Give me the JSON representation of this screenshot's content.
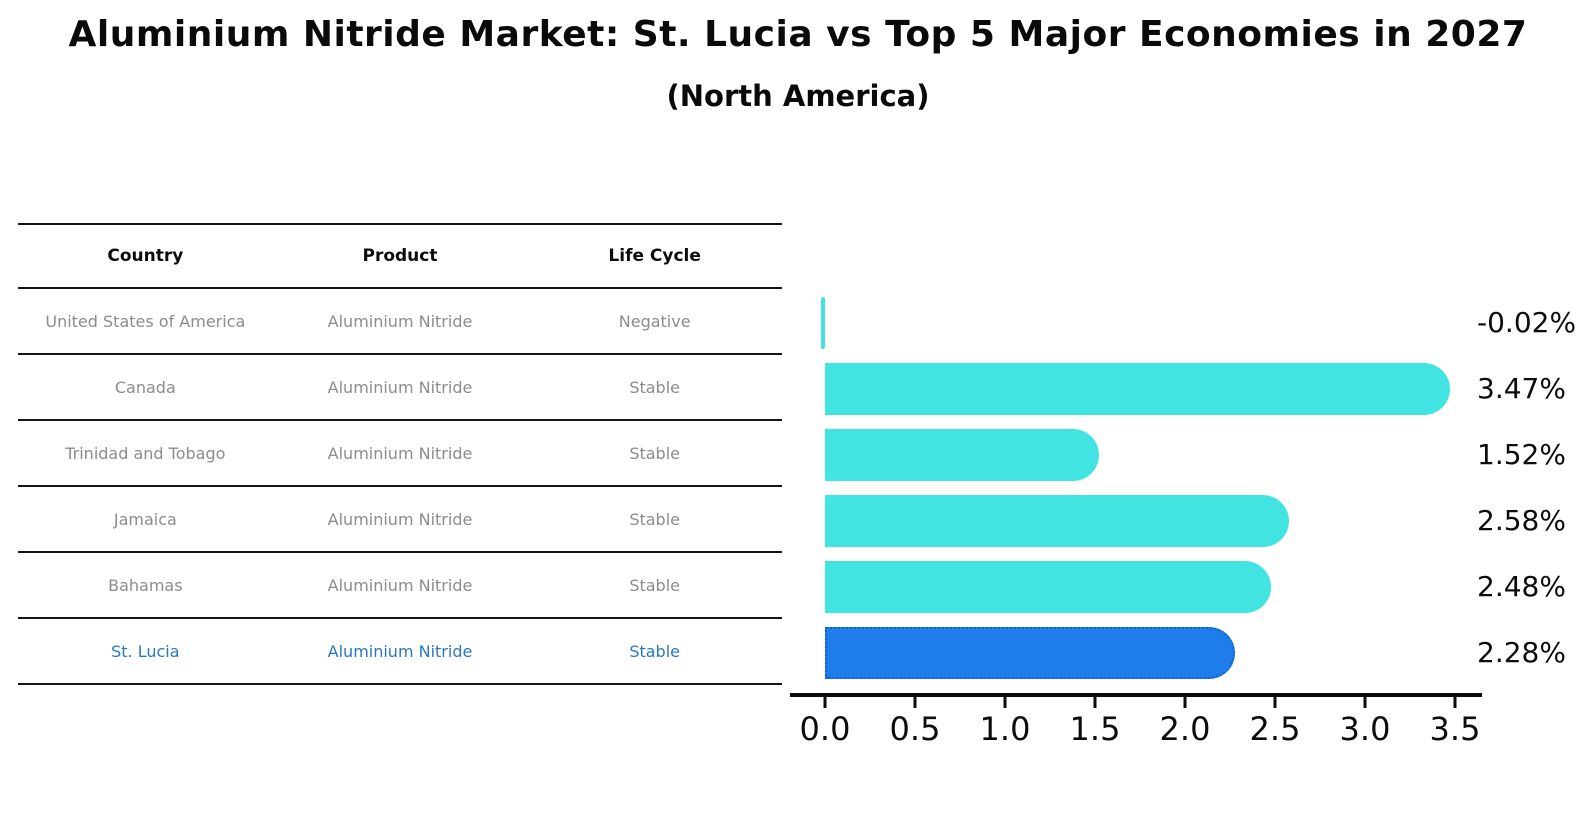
{
  "title": "Aluminium Nitride Market: St. Lucia vs Top 5 Major Economies in 2027",
  "subtitle": "(North America)",
  "table": {
    "columns": [
      "Country",
      "Product",
      "Life Cycle"
    ],
    "rows": [
      {
        "country": "United States of America",
        "product": "Aluminium Nitride",
        "life_cycle": "Negative",
        "highlight": false
      },
      {
        "country": "Canada",
        "product": "Aluminium Nitride",
        "life_cycle": "Stable",
        "highlight": false
      },
      {
        "country": "Trinidad and Tobago",
        "product": "Aluminium Nitride",
        "life_cycle": "Stable",
        "highlight": false
      },
      {
        "country": "Jamaica",
        "product": "Aluminium Nitride",
        "life_cycle": "Stable",
        "highlight": false
      },
      {
        "country": "Bahamas",
        "product": "Aluminium Nitride",
        "life_cycle": "Stable",
        "highlight": false
      },
      {
        "country": "St. Lucia",
        "product": "Aluminium Nitride",
        "life_cycle": "Stable",
        "highlight": true
      }
    ]
  },
  "chart_data": {
    "type": "bar",
    "orientation": "horizontal",
    "title": "Aluminium Nitride Market: St. Lucia vs Top 5 Major Economies in 2027",
    "subtitle": "(North America)",
    "categories": [
      "United States of America",
      "Canada",
      "Trinidad and Tobago",
      "Jamaica",
      "Bahamas",
      "St. Lucia"
    ],
    "values": [
      -0.02,
      3.47,
      1.52,
      2.58,
      2.48,
      2.28
    ],
    "value_labels": [
      "-0.02%",
      "3.47%",
      "1.52%",
      "2.58%",
      "2.48%",
      "2.28%"
    ],
    "x_tick_labels": [
      "0.0",
      "0.5",
      "1.0",
      "1.5",
      "2.0",
      "2.5",
      "3.0",
      "3.5"
    ],
    "x_tick_values": [
      0.0,
      0.5,
      1.0,
      1.5,
      2.0,
      2.5,
      3.0,
      3.5
    ],
    "xlim": [
      0,
      3.65
    ],
    "grid": false,
    "legend": false,
    "highlight_index": 5,
    "unit": "%"
  },
  "colors": {
    "bar": "#42e4e2",
    "highlight_bar": "#1e7ceb",
    "highlight_bar_border": "#1261d8",
    "highlight_text": "#2878be",
    "row_text": "#8c8c8c",
    "axis": "#0c0c0c"
  }
}
